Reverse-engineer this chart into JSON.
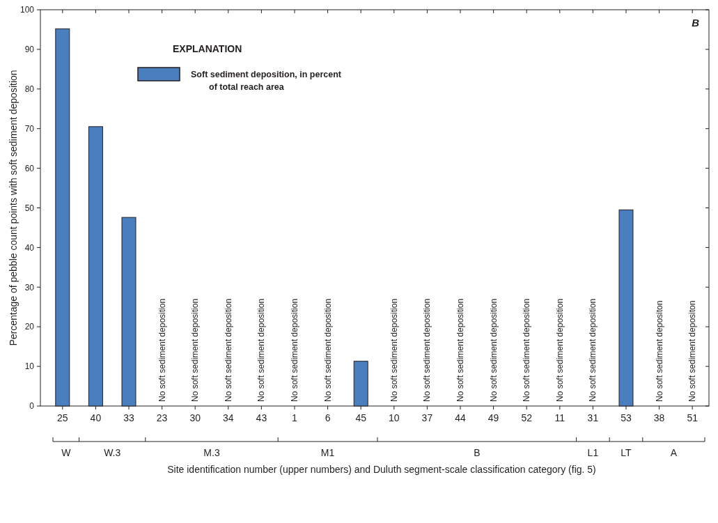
{
  "chart_data": {
    "type": "bar",
    "ylabel": "Percentage of pebble count points with soft sediment deposition",
    "xlabel": "Site identification number (upper numbers) and Duluth segment-scale classification category (fig. 5)",
    "legend_title": "EXPLANATION",
    "legend": "top left",
    "grid": false,
    "categories": [
      "25",
      "40",
      "33",
      "23",
      "30",
      "34",
      "43",
      "1",
      "6",
      "45",
      "10",
      "37",
      "44",
      "49",
      "52",
      "11",
      "31",
      "53",
      "38",
      "51"
    ],
    "series": [
      {
        "name": "Soft sediment deposition, in percent of total reach area",
        "color": "#4a7ebf",
        "values": [
          95.2,
          70.5,
          47.6,
          0,
          0,
          0,
          0,
          0,
          0,
          11.3,
          0,
          0,
          0,
          0,
          0,
          0,
          0,
          49.5,
          0,
          0
        ]
      }
    ],
    "ylim": [
      0,
      100
    ],
    "yticks": [
      0,
      10,
      20,
      30,
      40,
      50,
      60,
      70,
      80,
      90,
      100
    ],
    "annotations": [
      {
        "text": "No soft sediment deposition",
        "x": "23",
        "y": 0
      },
      {
        "text": "No soft sediment deposition",
        "x": "30",
        "y": 0
      },
      {
        "text": "No soft sediment deposition",
        "x": "34",
        "y": 0
      },
      {
        "text": "No soft sediment deposition",
        "x": "43",
        "y": 0
      },
      {
        "text": "No soft sediment deposition",
        "x": "1",
        "y": 0
      },
      {
        "text": "No soft sediment deposition",
        "x": "6",
        "y": 0
      },
      {
        "text": "No soft sediment deposition",
        "x": "10",
        "y": 0
      },
      {
        "text": "No soft sediment deposition",
        "x": "37",
        "y": 0
      },
      {
        "text": "No soft sediment deposition",
        "x": "44",
        "y": 0
      },
      {
        "text": "No soft sediment deposition",
        "x": "49",
        "y": 0
      },
      {
        "text": "No soft sediment deposition",
        "x": "52",
        "y": 0
      },
      {
        "text": "No soft sediment deposition",
        "x": "11",
        "y": 0
      },
      {
        "text": "No soft sediment deposition",
        "x": "31",
        "y": 0
      },
      {
        "text": "No soft sediment depositon",
        "x": "38",
        "y": 0
      },
      {
        "text": "No soft sediment depositon",
        "x": "51",
        "y": 0
      },
      "W",
      "W.3",
      "M.3",
      "M1",
      "B",
      "L1",
      "LT",
      "A",
      "B"
    ]
  }
}
